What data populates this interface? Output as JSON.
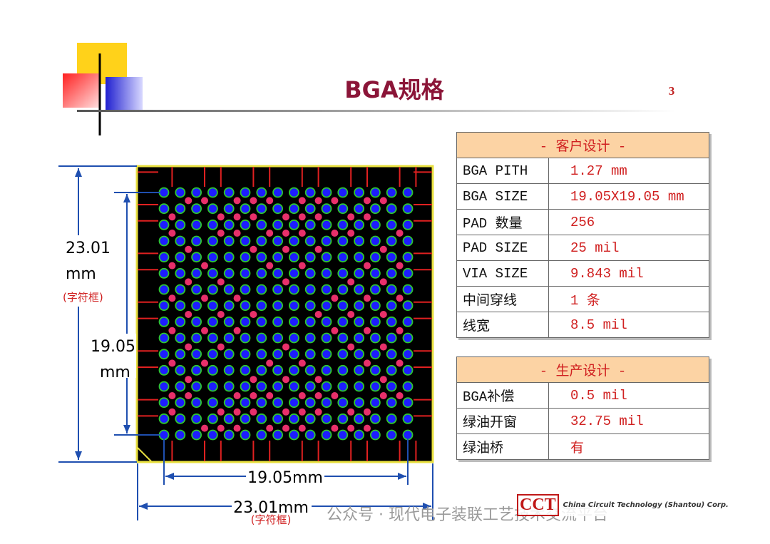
{
  "header": {
    "title": "BGA规格",
    "page_number": "3"
  },
  "dimensions": {
    "outer_height": "23.01",
    "outer_height_unit": "mm",
    "outer_height_note": "(字符框)",
    "inner_height": "19.05",
    "inner_height_unit": "mm",
    "inner_width": "19.05mm",
    "outer_width": "23.01mm",
    "outer_width_note": "(字符框)"
  },
  "tables": [
    {
      "title": "- 客户设计 -",
      "rows": [
        [
          "BGA PITH",
          "1.27 mm"
        ],
        [
          "BGA SIZE",
          "19.05X19.05 mm"
        ],
        [
          "PAD 数量",
          "256"
        ],
        [
          "PAD SIZE",
          "25 mil"
        ],
        [
          "VIA SIZE",
          "9.843 mil"
        ],
        [
          "中间穿线",
          "1 条"
        ],
        [
          "线宽",
          "8.5 mil"
        ]
      ]
    },
    {
      "title": "- 生产设计 -",
      "rows": [
        [
          "BGA补偿",
          "0.5 mil"
        ],
        [
          "绿油开窗",
          "32.75 mil"
        ],
        [
          "绿油桥",
          "有"
        ]
      ]
    }
  ],
  "watermark": "公众号 · 现代电子装联工艺技术交流平台",
  "logo": {
    "mark": "CCT",
    "subtitle": "China Circuit Technology (Shantou) Corp."
  }
}
